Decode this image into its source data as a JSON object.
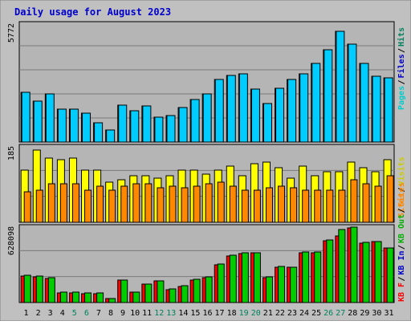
{
  "title": "Daily usage for August 2023",
  "colors": {
    "background": "#c0c0c0",
    "plot": "#b5b5b5",
    "title": "#0000cc",
    "hits": "#00805c",
    "files": "#0000cc",
    "pages": "#00cccc",
    "visits": "#cccc00",
    "sites": "#ff8800",
    "kb_in": "#0000cc",
    "kb_out": "#00b000",
    "kb_f": "#ff0000",
    "weekend_label": "#00805c"
  },
  "chart_data": [
    {
      "type": "bar",
      "panel": "top",
      "ymax_label": "5772",
      "legend": [
        "Pages",
        "Files",
        "Hits"
      ],
      "categories": [
        "1",
        "2",
        "3",
        "4",
        "5",
        "6",
        "7",
        "8",
        "9",
        "10",
        "11",
        "12",
        "13",
        "14",
        "15",
        "16",
        "17",
        "18",
        "19",
        "20",
        "21",
        "22",
        "23",
        "24",
        "25",
        "26",
        "27",
        "28",
        "29",
        "30",
        "31"
      ],
      "weekend_days": [
        "5",
        "6",
        "12",
        "13",
        "19",
        "20",
        "26",
        "27"
      ],
      "ylim": [
        0,
        5772
      ],
      "series": [
        {
          "name": "Hits",
          "values": [
            2465,
            2000,
            2390,
            1640,
            1640,
            1440,
            960,
            590,
            1820,
            1540,
            1770,
            1240,
            1300,
            1700,
            2090,
            2390,
            3090,
            3290,
            3350,
            2620,
            1910,
            2660,
            3090,
            3350,
            3890,
            4540,
            5460,
            4810,
            3860,
            3260,
            3160
          ]
        },
        {
          "name": "Files",
          "values": [
            2465,
            2000,
            2390,
            1640,
            1640,
            1440,
            960,
            590,
            1820,
            1540,
            1770,
            1240,
            1300,
            1700,
            2090,
            2390,
            3090,
            3290,
            3350,
            2620,
            1910,
            2660,
            3090,
            3350,
            3890,
            4540,
            5460,
            4810,
            3860,
            3260,
            3160
          ]
        }
      ]
    },
    {
      "type": "bar",
      "panel": "middle",
      "ymax_label": "185",
      "legend": [
        "Visits",
        "Sites"
      ],
      "categories": [
        "1",
        "2",
        "3",
        "4",
        "5",
        "6",
        "7",
        "8",
        "9",
        "10",
        "11",
        "12",
        "13",
        "14",
        "15",
        "16",
        "17",
        "18",
        "19",
        "20",
        "21",
        "22",
        "23",
        "24",
        "25",
        "26",
        "27",
        "28",
        "29",
        "30",
        "31"
      ],
      "ylim": [
        0,
        185
      ],
      "series": [
        {
          "name": "Visits",
          "values": [
            130,
            180,
            160,
            155,
            160,
            130,
            130,
            100,
            105,
            115,
            115,
            110,
            115,
            130,
            130,
            120,
            130,
            140,
            115,
            145,
            150,
            135,
            110,
            140,
            115,
            125,
            125,
            150,
            135,
            125,
            155
          ]
        },
        {
          "name": "Sites",
          "values": [
            75,
            80,
            95,
            95,
            95,
            80,
            90,
            80,
            90,
            95,
            95,
            85,
            90,
            85,
            90,
            95,
            100,
            90,
            80,
            80,
            85,
            90,
            85,
            80,
            80,
            80,
            80,
            105,
            95,
            90,
            115
          ]
        }
      ]
    },
    {
      "type": "bar",
      "panel": "bottom",
      "ymax_label": "628098",
      "legend": [
        "KB F",
        "KB In",
        "KB Out",
        "Sites"
      ],
      "categories": [
        "1",
        "2",
        "3",
        "4",
        "5",
        "6",
        "7",
        "8",
        "9",
        "10",
        "11",
        "12",
        "13",
        "14",
        "15",
        "16",
        "17",
        "18",
        "19",
        "20",
        "21",
        "22",
        "23",
        "24",
        "25",
        "26",
        "27",
        "28",
        "29",
        "30",
        "31"
      ],
      "ylim": [
        0,
        628098
      ],
      "series": [
        {
          "name": "KB F",
          "values": [
            224000,
            216000,
            202000,
            84000,
            84000,
            76000,
            72000,
            32000,
            188000,
            88000,
            155000,
            182000,
            110000,
            138000,
            188000,
            210000,
            316000,
            392000,
            415000,
            416000,
            210000,
            294000,
            294000,
            420000,
            420000,
            520000,
            560000,
            625000,
            498000,
            510000,
            462000
          ]
        },
        {
          "name": "KB In",
          "values": [
            231000,
            224000,
            211000,
            90000,
            90000,
            81000,
            81000,
            37000,
            191000,
            90000,
            157000,
            183000,
            114000,
            144000,
            193000,
            218000,
            324000,
            401000,
            420000,
            420000,
            213000,
            302000,
            300000,
            426000,
            425000,
            530000,
            615000,
            633000,
            505000,
            515000,
            462000
          ]
        }
      ]
    }
  ]
}
